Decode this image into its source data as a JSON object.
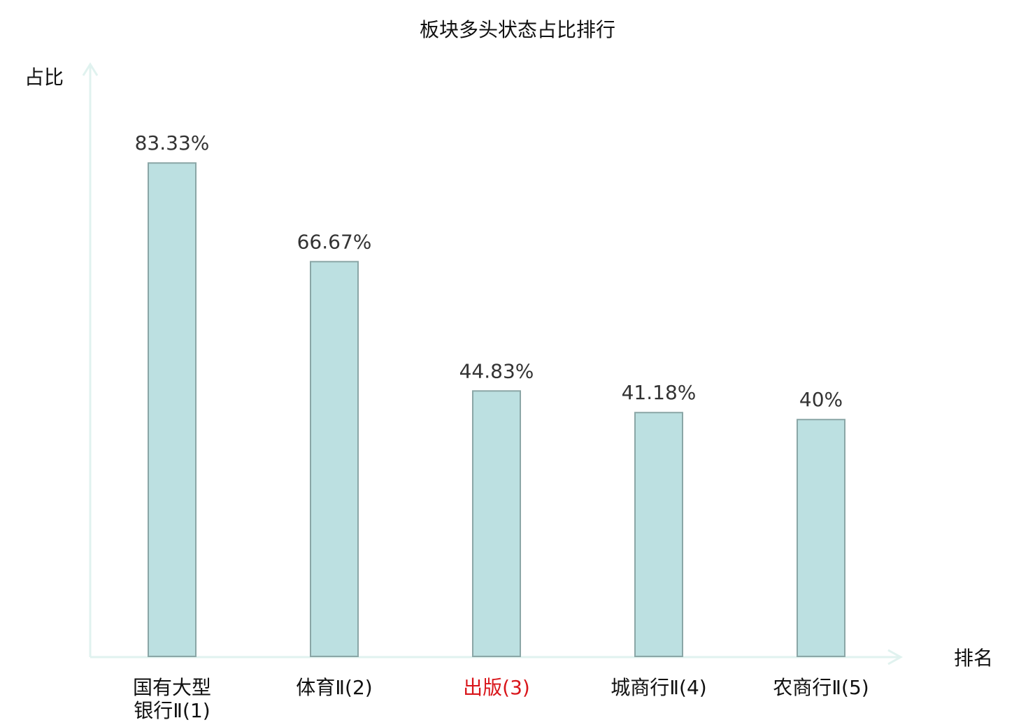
{
  "chart_data": {
    "type": "bar",
    "title": "板块多头状态占比排行",
    "ylabel": "占比",
    "xlabel": "排名",
    "categories": [
      [
        "国有大型",
        "银行Ⅱ(1)"
      ],
      [
        "体育Ⅱ(2)"
      ],
      [
        "出版(3)"
      ],
      [
        "城商行Ⅱ(4)"
      ],
      [
        "农商行Ⅱ(5)"
      ]
    ],
    "values": [
      83.33,
      66.67,
      44.83,
      41.18,
      40
    ],
    "value_labels": [
      "83.33%",
      "66.67%",
      "44.83%",
      "41.18%",
      "40%"
    ],
    "highlight_index": 2,
    "colors": {
      "bar_fill": "#bce0e1",
      "bar_stroke": "#8aa6a6",
      "axis": "#e0f2ef",
      "highlight_text": "#d9161b",
      "text": "#111111",
      "value_text": "#333333"
    },
    "ylim": [
      0,
      100
    ],
    "grid": false
  }
}
